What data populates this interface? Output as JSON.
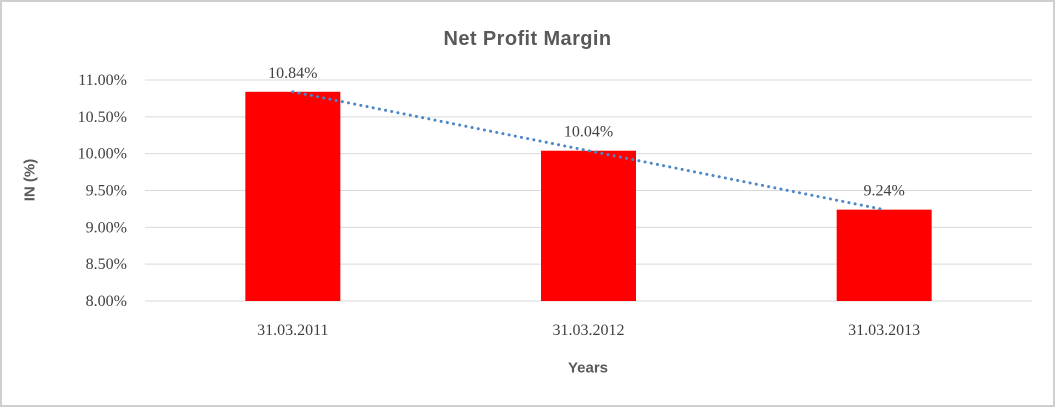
{
  "chart_data": {
    "type": "bar",
    "title": "Net Profit Margin",
    "xlabel": "Years",
    "ylabel": "IN (%)",
    "categories": [
      "31.03.2011",
      "31.03.2012",
      "31.03.2013"
    ],
    "series": [
      {
        "name": "Net Profit Margin",
        "values": [
          10.84,
          10.04,
          9.24
        ]
      }
    ],
    "data_labels": [
      "10.84%",
      "10.04%",
      "9.24%"
    ],
    "ylim": [
      8.0,
      11.0
    ],
    "ytick_step": 0.5,
    "yticks": [
      {
        "value": 11.0,
        "label": "11.00%"
      },
      {
        "value": 10.5,
        "label": "10.50%"
      },
      {
        "value": 10.0,
        "label": "10.00%"
      },
      {
        "value": 9.5,
        "label": "9.50%"
      },
      {
        "value": 9.0,
        "label": "9.00%"
      },
      {
        "value": 8.5,
        "label": "8.50%"
      },
      {
        "value": 8.0,
        "label": "8.00%"
      }
    ],
    "grid": true,
    "legend": "none",
    "trendline": {
      "type": "linear",
      "style": "dotted",
      "color": "#4a86c8"
    },
    "colors": {
      "bar": "#ff0000",
      "gridline": "#d9d9d9",
      "title": "#595959",
      "axis_title": "#595959",
      "tick_label": "#404040",
      "data_label": "#404040",
      "frame_border": "#cfcfcf"
    }
  }
}
